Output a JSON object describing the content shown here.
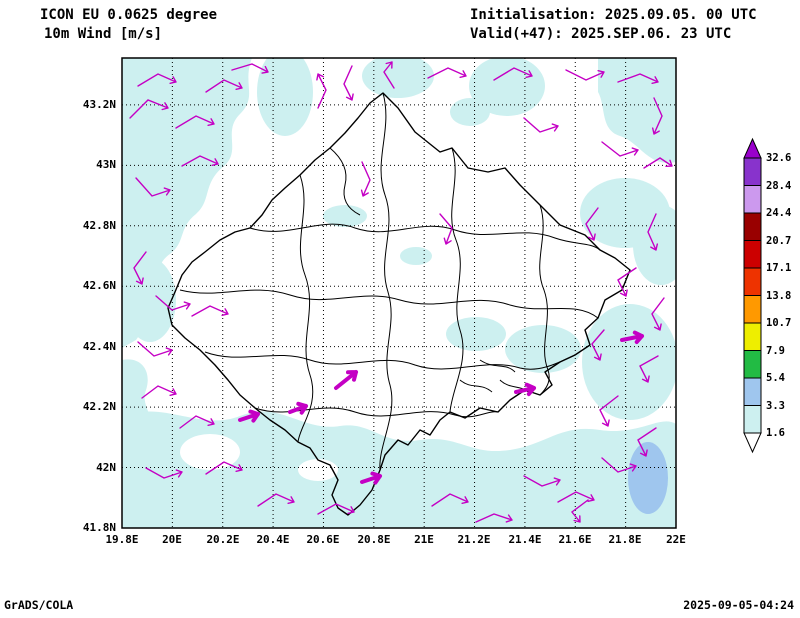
{
  "header": {
    "model": "ICON EU 0.0625 degree",
    "field": "10m Wind [m/s]",
    "init": "Initialisation: 2025.09.05. 00 UTC",
    "valid": "Valid(+47): 2025.SEP.06. 23 UTC"
  },
  "footer": {
    "left": "GrADS/COLA",
    "right": "2025-09-05-04:24"
  },
  "map": {
    "x_ticks": [
      "19.8E",
      "20E",
      "20.2E",
      "20.4E",
      "20.6E",
      "20.8E",
      "21E",
      "21.2E",
      "21.4E",
      "21.6E",
      "21.8E",
      "22E"
    ],
    "y_ticks": [
      "43.2N",
      "43N",
      "42.8N",
      "42.6N",
      "42.4N",
      "42.2N",
      "42N",
      "41.8N"
    ],
    "colors": {
      "calm_shade": "#cdf0f0",
      "breeze_shade": "#9fc6ee",
      "wind_vector": "#c400c4",
      "border": "#000000",
      "grid": "#000000"
    },
    "wind_vectors": [
      [
        [
          130,
          118
        ],
        [
          148,
          100
        ],
        [
          168,
          108
        ]
      ],
      [
        [
          138,
          86
        ],
        [
          158,
          74
        ],
        [
          176,
          82
        ]
      ],
      [
        [
          176,
          128
        ],
        [
          196,
          116
        ],
        [
          214,
          124
        ]
      ],
      [
        [
          206,
          92
        ],
        [
          224,
          80
        ],
        [
          242,
          88
        ]
      ],
      [
        [
          232,
          70
        ],
        [
          252,
          64
        ],
        [
          268,
          72
        ]
      ],
      [
        [
          318,
          108
        ],
        [
          326,
          90
        ],
        [
          318,
          74
        ]
      ],
      [
        [
          352,
          66
        ],
        [
          344,
          84
        ],
        [
          352,
          100
        ]
      ],
      [
        [
          394,
          88
        ],
        [
          384,
          72
        ],
        [
          392,
          62
        ]
      ],
      [
        [
          428,
          78
        ],
        [
          448,
          68
        ],
        [
          466,
          76
        ]
      ],
      [
        [
          494,
          80
        ],
        [
          514,
          68
        ],
        [
          532,
          76
        ]
      ],
      [
        [
          524,
          118
        ],
        [
          540,
          132
        ],
        [
          558,
          126
        ]
      ],
      [
        [
          566,
          70
        ],
        [
          586,
          80
        ],
        [
          604,
          72
        ]
      ],
      [
        [
          618,
          82
        ],
        [
          640,
          74
        ],
        [
          658,
          82
        ]
      ],
      [
        [
          654,
          98
        ],
        [
          662,
          116
        ],
        [
          654,
          134
        ]
      ],
      [
        [
          602,
          142
        ],
        [
          620,
          156
        ],
        [
          638,
          150
        ]
      ],
      [
        [
          644,
          168
        ],
        [
          660,
          158
        ],
        [
          672,
          166
        ]
      ],
      [
        [
          598,
          208
        ],
        [
          586,
          224
        ],
        [
          594,
          240
        ]
      ],
      [
        [
          656,
          214
        ],
        [
          648,
          232
        ],
        [
          656,
          250
        ]
      ],
      [
        [
          636,
          268
        ],
        [
          618,
          280
        ],
        [
          626,
          296
        ]
      ],
      [
        [
          664,
          298
        ],
        [
          652,
          314
        ],
        [
          660,
          330
        ]
      ],
      [
        [
          604,
          330
        ],
        [
          592,
          344
        ],
        [
          600,
          360
        ]
      ],
      [
        [
          658,
          356
        ],
        [
          640,
          366
        ],
        [
          648,
          382
        ]
      ],
      [
        [
          618,
          396
        ],
        [
          600,
          410
        ],
        [
          608,
          426
        ]
      ],
      [
        [
          656,
          428
        ],
        [
          638,
          440
        ],
        [
          646,
          456
        ]
      ],
      [
        [
          602,
          458
        ],
        [
          618,
          472
        ],
        [
          636,
          466
        ]
      ],
      [
        [
          588,
          500
        ],
        [
          572,
          512
        ],
        [
          580,
          522
        ]
      ],
      [
        [
          136,
          178
        ],
        [
          152,
          196
        ],
        [
          170,
          190
        ]
      ],
      [
        [
          182,
          166
        ],
        [
          200,
          156
        ],
        [
          218,
          164
        ]
      ],
      [
        [
          146,
          252
        ],
        [
          134,
          268
        ],
        [
          142,
          284
        ]
      ],
      [
        [
          156,
          296
        ],
        [
          172,
          310
        ],
        [
          190,
          304
        ]
      ],
      [
        [
          138,
          342
        ],
        [
          154,
          356
        ],
        [
          172,
          350
        ]
      ],
      [
        [
          192,
          316
        ],
        [
          210,
          306
        ],
        [
          228,
          314
        ]
      ],
      [
        [
          142,
          398
        ],
        [
          158,
          386
        ],
        [
          176,
          394
        ]
      ],
      [
        [
          180,
          428
        ],
        [
          196,
          416
        ],
        [
          214,
          424
        ]
      ],
      [
        [
          146,
          468
        ],
        [
          164,
          478
        ],
        [
          182,
          472
        ]
      ],
      [
        [
          206,
          474
        ],
        [
          224,
          462
        ],
        [
          242,
          470
        ]
      ],
      [
        [
          258,
          506
        ],
        [
          276,
          494
        ],
        [
          294,
          502
        ]
      ],
      [
        [
          318,
          514
        ],
        [
          336,
          504
        ],
        [
          354,
          512
        ]
      ],
      [
        [
          432,
          506
        ],
        [
          450,
          494
        ],
        [
          468,
          502
        ]
      ],
      [
        [
          476,
          522
        ],
        [
          494,
          514
        ],
        [
          512,
          520
        ]
      ],
      [
        [
          524,
          476
        ],
        [
          542,
          486
        ],
        [
          560,
          480
        ]
      ],
      [
        [
          558,
          502
        ],
        [
          576,
          492
        ],
        [
          594,
          500
        ]
      ],
      [
        [
          362,
          162
        ],
        [
          370,
          180
        ],
        [
          363,
          196
        ]
      ],
      [
        [
          440,
          214
        ],
        [
          452,
          228
        ],
        [
          446,
          244
        ]
      ]
    ],
    "wind_vectors_bold": [
      [
        [
          336,
          388
        ],
        [
          356,
          372
        ]
      ],
      [
        [
          240,
          420
        ],
        [
          258,
          414
        ]
      ],
      [
        [
          290,
          412
        ],
        [
          306,
          406
        ]
      ],
      [
        [
          516,
          392
        ],
        [
          534,
          388
        ]
      ],
      [
        [
          622,
          340
        ],
        [
          642,
          336
        ]
      ],
      [
        [
          362,
          482
        ],
        [
          380,
          476
        ]
      ]
    ]
  },
  "colorbar": {
    "levels": [
      "32.6",
      "28.4",
      "24.4",
      "20.7",
      "17.1",
      "13.8",
      "10.7",
      "7.9",
      "5.4",
      "3.3",
      "1.6"
    ],
    "colors": [
      "#9900cc",
      "#8833cc",
      "#cc99ee",
      "#990000",
      "#cc0000",
      "#ee3300",
      "#ff9900",
      "#eeee00",
      "#22bb44",
      "#9fc6ee",
      "#cdf0f0",
      "#ffffff"
    ]
  }
}
